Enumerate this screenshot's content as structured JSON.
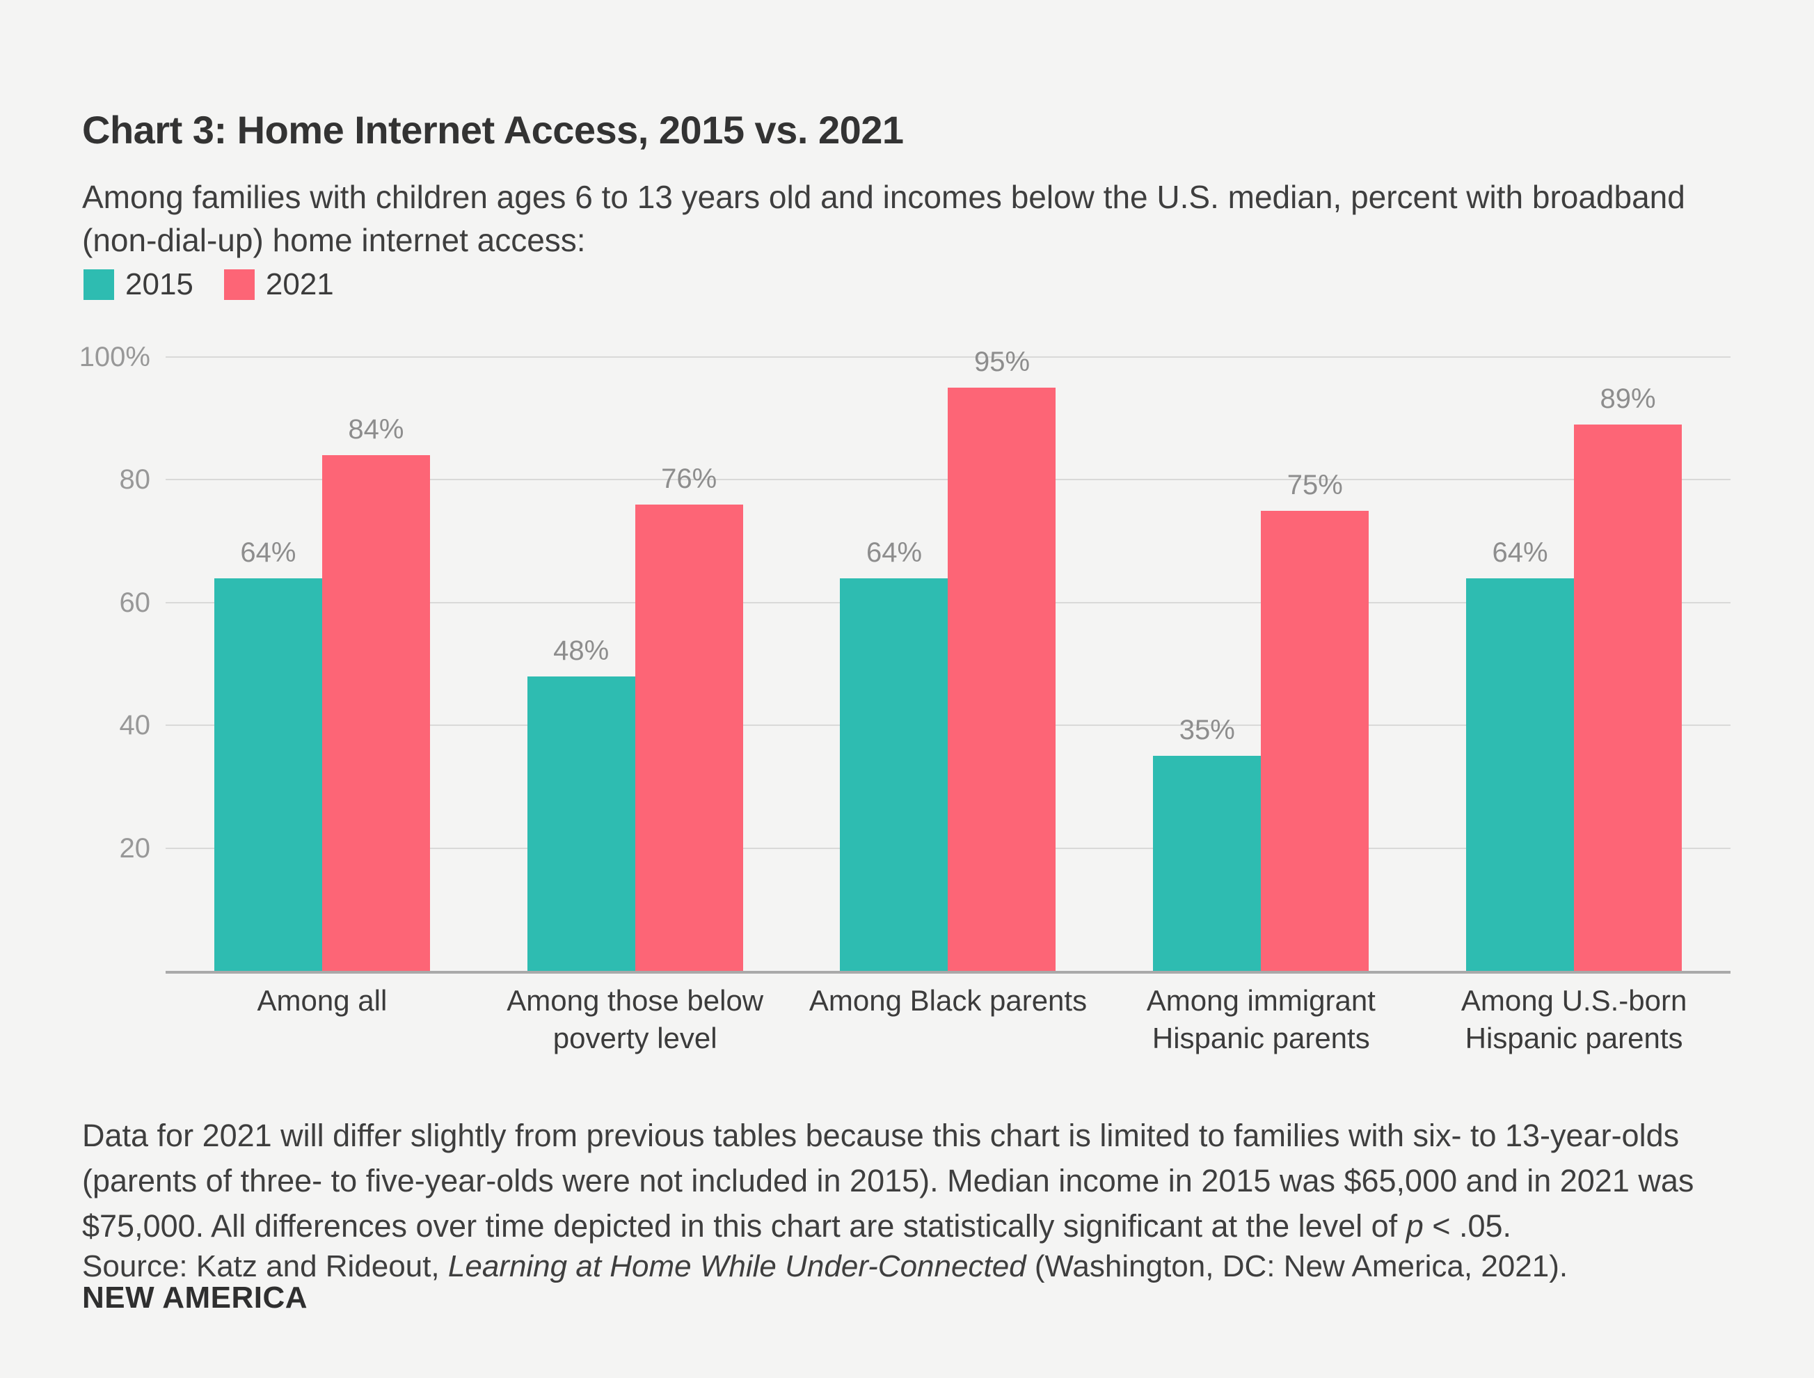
{
  "page": {
    "background": "#f4f4f3"
  },
  "header": {
    "title": "Chart 3: Home Internet Access, 2015 vs. 2021",
    "subtitle": "Among families with children ages 6 to 13 years old and incomes below the U.S. median, percent with broadband (non-dial-up) home internet access:"
  },
  "chart_data": {
    "type": "bar",
    "title": "Chart 3: Home Internet Access, 2015 vs. 2021",
    "categories": [
      "Among all",
      "Among those below\npoverty level",
      "Among Black parents",
      "Among immigrant\nHispanic parents",
      "Among U.S.-born\nHispanic parents"
    ],
    "series": [
      {
        "name": "2015",
        "color": "#2ebcb1",
        "values": [
          64,
          48,
          64,
          35,
          64
        ]
      },
      {
        "name": "2021",
        "color": "#fd6576",
        "values": [
          84,
          76,
          95,
          75,
          89
        ]
      }
    ],
    "value_suffix": "%",
    "xlabel": "",
    "ylabel": "",
    "ylim": [
      0,
      100
    ],
    "yticks": [
      {
        "value": 100,
        "label": "100%"
      },
      {
        "value": 80,
        "label": "80"
      },
      {
        "value": 60,
        "label": "60"
      },
      {
        "value": 40,
        "label": "40"
      },
      {
        "value": 20,
        "label": "20"
      }
    ],
    "grid": true,
    "legend_position": "top-left",
    "grid_color": "#d9d9d8",
    "axis_color": "#a9a9a9",
    "tick_label_color": "#989898",
    "value_label_color": "#8d8d8d",
    "category_label_color": "#3b3b3b"
  },
  "footnote": {
    "text_before_p": "Data for 2021 will differ slightly from previous tables because this chart is limited to families with six- to 13-year-olds (parents of three- to five-year-olds were not included in 2015). Median income in 2015 was $65,000 and in 2021 was $75,000. All differences over time depicted in this chart are statistically significant at the level of ",
    "p_italic": "p",
    "text_after_p": " < .05."
  },
  "source": {
    "prefix": "Source: Katz and Rideout, ",
    "work_italic": "Learning at Home While Under-Connected",
    "suffix": " (Washington, DC: New America, 2021)."
  },
  "logo_text": "NEW AMERICA"
}
